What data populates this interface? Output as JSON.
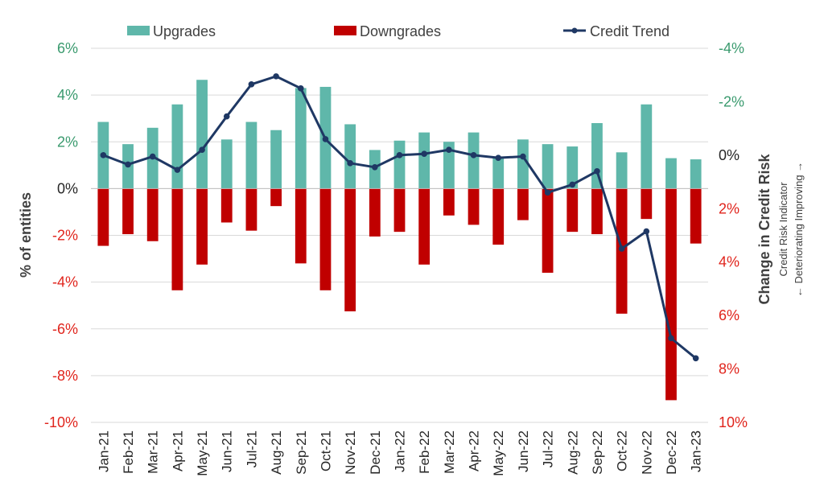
{
  "chart_data": {
    "type": "bar+line",
    "categories": [
      "Jan-21",
      "Feb-21",
      "Mar-21",
      "Apr-21",
      "May-21",
      "Jun-21",
      "Jul-21",
      "Aug-21",
      "Sep-21",
      "Oct-21",
      "Nov-21",
      "Dec-21",
      "Jan-22",
      "Feb-22",
      "Mar-22",
      "Apr-22",
      "May-22",
      "Jun-22",
      "Jul-22",
      "Aug-22",
      "Sep-22",
      "Oct-22",
      "Nov-22",
      "Dec-22",
      "Jan-23"
    ],
    "series": [
      {
        "name": "Upgrades",
        "kind": "bar",
        "axis": "left",
        "color": "#5fb7aa",
        "values": [
          2.85,
          1.9,
          2.6,
          3.6,
          4.65,
          2.1,
          2.85,
          2.5,
          4.3,
          4.35,
          2.75,
          1.65,
          2.05,
          2.4,
          2.0,
          2.4,
          1.35,
          2.1,
          1.9,
          1.8,
          2.8,
          1.55,
          3.6,
          1.3,
          1.25
        ]
      },
      {
        "name": "Downgrades",
        "kind": "bar",
        "axis": "left",
        "color": "#c00000",
        "values": [
          -2.45,
          -1.95,
          -2.25,
          -4.35,
          -3.25,
          -1.45,
          -1.8,
          -0.75,
          -3.2,
          -4.35,
          -5.25,
          -2.05,
          -1.85,
          -3.25,
          -1.15,
          -1.55,
          -2.4,
          -1.35,
          -3.6,
          -1.85,
          -1.95,
          -5.35,
          -1.3,
          -9.05,
          -2.35
        ]
      },
      {
        "name": "Credit Trend",
        "kind": "line",
        "axis": "right",
        "color": "#1f3864",
        "values": [
          0.0,
          0.35,
          0.05,
          0.55,
          -0.2,
          -1.45,
          -2.65,
          -2.95,
          -2.5,
          -0.6,
          0.3,
          0.45,
          0.0,
          -0.05,
          -0.2,
          0.0,
          0.1,
          0.05,
          1.4,
          1.1,
          0.6,
          3.5,
          2.85,
          6.85,
          7.6
        ]
      }
    ],
    "title": "",
    "ylabel": "% of entities",
    "y2label": "Change in Credit Risk",
    "y2sublabel_1": "Credit Risk Indicator",
    "y2sublabel_2": "← Deteriorating Improving →",
    "ylim": [
      -10,
      6
    ],
    "y2lim": [
      -4,
      10
    ],
    "y2_inverted": true,
    "yticks": [
      "6%",
      "4%",
      "2%",
      "0%",
      "-2%",
      "-4%",
      "-6%",
      "-8%",
      "-10%"
    ],
    "y2ticks": [
      "-4%",
      "-2%",
      "0%",
      "2%",
      "4%",
      "6%",
      "8%",
      "10%"
    ],
    "legend_position": "top",
    "grid": true
  },
  "colors": {
    "positive_tick": "#3a9a6e",
    "negative_tick": "#e0241c",
    "axis_title": "#404040",
    "grid": "#d9d9d9",
    "tick_label": "#262626"
  }
}
